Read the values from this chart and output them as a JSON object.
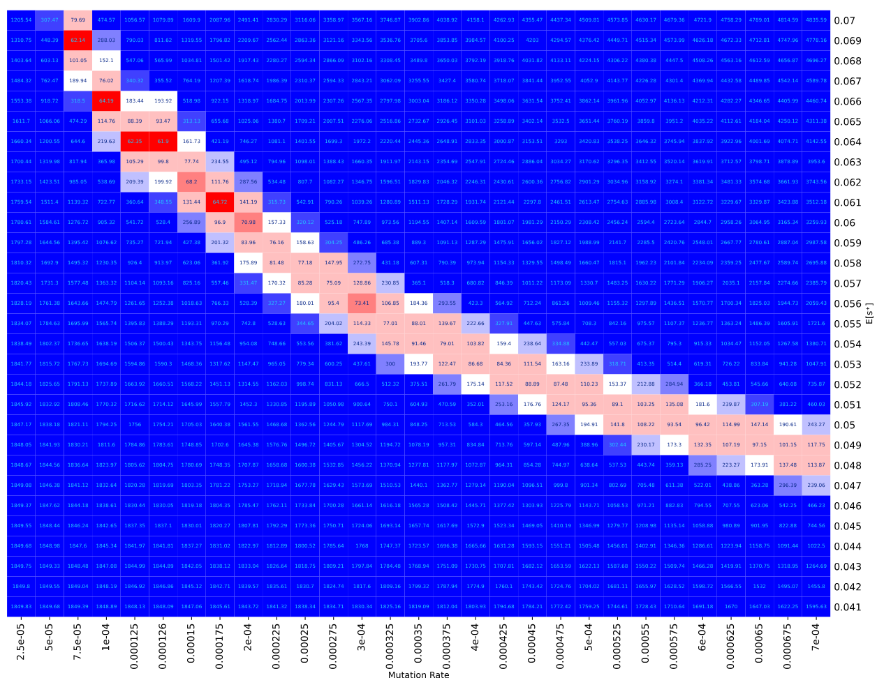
{
  "chart_data": {
    "type": "heatmap",
    "xlabel": "Mutation Rate",
    "ylabel": "E[s⁺]",
    "categories": [
      "2.5e-05",
      "5e-05",
      "7.5e-05",
      "1e-04",
      "0.000125",
      "0.000126",
      "0.00015",
      "0.000175",
      "2e-04",
      "0.000225",
      "0.00025",
      "0.000275",
      "3e-04",
      "0.000325",
      "0.00035",
      "0.000375",
      "4e-04",
      "0.000425",
      "0.00045",
      "0.000475",
      "5e-04",
      "0.000525",
      "0.00055",
      "0.000575",
      "6e-04",
      "0.000625",
      "0.00065",
      "0.000675",
      "7e-04"
    ],
    "y_categories": [
      "0.07",
      "0.069",
      "0.068",
      "0.067",
      "0.066",
      "0.065",
      "0.064",
      "0.063",
      "0.062",
      "0.061",
      "0.06",
      "0.059",
      "0.058",
      "0.057",
      "0.056",
      "0.055",
      "0.054",
      "0.053",
      "0.052",
      "0.051",
      "0.05",
      "0.049",
      "0.048",
      "0.047",
      "0.046",
      "0.045",
      "0.044",
      "0.043",
      "0.042",
      "0.041"
    ],
    "data_labels": true,
    "cells": [
      [
        1205.54,
        307.47,
        79.69,
        474.57,
        1056.57,
        1079.89,
        1609.9,
        2087.96,
        2491.41,
        2830.29,
        3116.06,
        3358.97,
        3567.16,
        3746.87,
        3902.86,
        4038.92,
        4158.1,
        4262.93,
        4355.47,
        4437.34,
        4509.81,
        4573.85,
        4630.17,
        4679.36,
        4721.9,
        4758.29,
        4789.01,
        4814.59,
        4835.59
      ],
      [
        1310.75,
        448.39,
        62.14,
        288.03,
        790.03,
        811.62,
        1319.55,
        1796.82,
        2209.67,
        2562.44,
        2863.36,
        3121.16,
        3343.56,
        3536.76,
        3705.6,
        3853.85,
        3984.57,
        4100.25,
        4203,
        4294.57,
        4376.42,
        4449.71,
        4515.34,
        4573.99,
        4626.18,
        4672.33,
        4712.81,
        4747.96,
        4778.16
      ],
      [
        1403.64,
        603.13,
        101.05,
        152.1,
        547.06,
        565.99,
        1034.81,
        1501.42,
        1917.43,
        2280.27,
        2594.34,
        2866.09,
        3102.16,
        3308.45,
        3489.8,
        3650.03,
        3792.19,
        3918.76,
        4031.82,
        4133.11,
        4224.15,
        4306.22,
        4380.38,
        4447.5,
        4508.26,
        4563.16,
        4612.59,
        4656.87,
        4696.27
      ],
      [
        1484.32,
        762.47,
        189.94,
        76.02,
        340.32,
        355.52,
        764.19,
        1207.39,
        1618.74,
        1986.39,
        2310.37,
        2594.33,
        2843.21,
        3062.09,
        3255.55,
        3427.4,
        3580.74,
        3718.07,
        3841.44,
        3952.55,
        4052.9,
        4143.77,
        4226.28,
        4301.4,
        4369.94,
        4432.58,
        4489.85,
        4542.14,
        4589.78
      ],
      [
        1553.38,
        918.72,
        318.5,
        64.19,
        183.44,
        193.92,
        518.98,
        922.15,
        1318.97,
        1684.75,
        2013.99,
        2307.26,
        2567.35,
        2797.98,
        3003.04,
        3186.12,
        3350.28,
        3498.06,
        3631.54,
        3752.41,
        3862.14,
        3961.96,
        4052.97,
        4136.13,
        4212.31,
        4282.27,
        4346.65,
        4405.99,
        4460.74
      ],
      [
        1611.7,
        1066.06,
        474.29,
        114.76,
        88.39,
        93.47,
        313.13,
        655.68,
        1025.06,
        1380.7,
        1709.21,
        2007.51,
        2276.06,
        2516.86,
        2732.67,
        2926.45,
        3101.03,
        3258.89,
        3402.14,
        3532.5,
        3651.44,
        3760.19,
        3859.8,
        3951.2,
        4035.22,
        4112.61,
        4184.04,
        4250.12,
        4311.38
      ],
      [
        1660.34,
        1200.55,
        644.6,
        219.63,
        62.35,
        61.9,
        161.73,
        421.19,
        746.27,
        1081.1,
        1401.55,
        1699.3,
        1972.2,
        2220.44,
        2445.36,
        2648.91,
        2833.35,
        3000.87,
        3153.51,
        3293,
        3420.83,
        3538.25,
        3646.32,
        3745.94,
        3837.92,
        3922.96,
        4001.69,
        4074.71,
        4142.55
      ],
      [
        1700.44,
        1319.98,
        817.94,
        365.98,
        105.29,
        99.8,
        77.74,
        234.55,
        495.12,
        794.96,
        1098.01,
        1388.43,
        1660.35,
        1911.97,
        2143.15,
        2354.69,
        2547.91,
        2724.46,
        2886.04,
        3034.27,
        3170.62,
        3296.35,
        3412.55,
        3520.14,
        3619.91,
        3712.57,
        3798.71,
        3878.89,
        3953.6
      ],
      [
        1733.15,
        1423.51,
        985.05,
        538.69,
        209.39,
        199.92,
        68.2,
        111.76,
        287.56,
        534.48,
        807.7,
        1082.27,
        1346.75,
        1596.51,
        1829.83,
        2046.32,
        2246.31,
        2430.61,
        2600.36,
        2756.82,
        2901.29,
        3034.96,
        3158.92,
        3274.1,
        3381.34,
        3481.33,
        3574.68,
        3661.93,
        3743.56
      ],
      [
        1759.54,
        1511.4,
        1139.32,
        722.77,
        360.64,
        348.55,
        131.44,
        64.72,
        141.19,
        315.73,
        542.91,
        790.26,
        1039.26,
        1280.89,
        1511.13,
        1728.29,
        1931.74,
        2121.44,
        2297.8,
        2461.51,
        2613.47,
        2754.63,
        2885.98,
        3008.4,
        3122.72,
        3229.67,
        3329.87,
        3423.88,
        3512.18
      ],
      [
        1780.61,
        1584.61,
        1276.72,
        905.32,
        541.72,
        528.4,
        256.89,
        96.9,
        70.98,
        157.33,
        320.12,
        525.18,
        747.89,
        973.56,
        1194.55,
        1407.14,
        1609.59,
        1801.07,
        1981.29,
        2150.29,
        2308.42,
        2456.24,
        2594.4,
        2723.64,
        2844.7,
        2958.26,
        3064.95,
        3165.34,
        3259.93
      ],
      [
        1797.28,
        1644.56,
        1395.42,
        1076.62,
        735.27,
        721.94,
        427.38,
        201.32,
        83.96,
        76.16,
        158.63,
        304.25,
        486.26,
        685.38,
        889.3,
        1091.13,
        1287.29,
        1475.91,
        1656.02,
        1827.12,
        1988.99,
        2141.7,
        2285.5,
        2420.76,
        2548.01,
        2667.77,
        2780.61,
        2887.04,
        2987.58
      ],
      [
        1810.32,
        1692.9,
        1495.32,
        1230.35,
        926.4,
        913.97,
        623.06,
        361.92,
        175.89,
        81.48,
        77.18,
        147.95,
        272.75,
        431.18,
        607.31,
        790.39,
        973.94,
        1154.33,
        1329.55,
        1498.49,
        1660.47,
        1815.1,
        1962.23,
        2101.84,
        2234.09,
        2359.25,
        2477.67,
        2589.74,
        2695.88
      ],
      [
        1820.43,
        1731.3,
        1577.48,
        1363.32,
        1104.14,
        1093.16,
        825.16,
        557.46,
        331.47,
        170.32,
        85.28,
        75.09,
        128.86,
        230.85,
        365.1,
        518.3,
        680.82,
        846.39,
        1011.22,
        1173.09,
        1330.7,
        1483.25,
        1630.22,
        1771.29,
        1906.27,
        2035.1,
        2157.84,
        2274.66,
        2385.79
      ],
      [
        1828.19,
        1761.38,
        1643.66,
        1474.79,
        1261.65,
        1252.38,
        1018.63,
        766.33,
        528.39,
        327.27,
        180.01,
        95.4,
        73.41,
        106.85,
        184.36,
        293.55,
        423.3,
        564.92,
        712.24,
        861.26,
        1009.46,
        1155.32,
        1297.89,
        1436.51,
        1570.77,
        1700.34,
        1825.03,
        1944.73,
        2059.43
      ],
      [
        1834.07,
        1784.63,
        1695.99,
        1565.74,
        1395.83,
        1388.29,
        1193.31,
        970.29,
        742.8,
        528.63,
        344.65,
        204.02,
        114.33,
        77.01,
        88.01,
        139.67,
        222.66,
        327.91,
        447.63,
        575.84,
        708.3,
        842.16,
        975.57,
        1107.37,
        1236.77,
        1363.24,
        1486.39,
        1605.91,
        1721.6
      ],
      [
        1838.49,
        1802.37,
        1736.65,
        1638.19,
        1506.37,
        1500.43,
        1343.75,
        1156.48,
        954.08,
        748.66,
        553.56,
        381.62,
        243.39,
        145.78,
        91.46,
        79.01,
        103.82,
        159.4,
        238.64,
        334.88,
        442.47,
        557.03,
        675.37,
        795.3,
        915.33,
        1034.47,
        1152.05,
        1267.58,
        1380.71
      ],
      [
        1841.77,
        1815.72,
        1767.73,
        1694.69,
        1594.86,
        1590.3,
        1468.36,
        1317.62,
        1147.47,
        965.05,
        779.34,
        600.25,
        437.61,
        300,
        193.77,
        122.47,
        86.68,
        84.36,
        111.54,
        163.16,
        233.89,
        318.71,
        413.35,
        514.4,
        619.31,
        726.22,
        833.84,
        941.28,
        1047.91
      ],
      [
        1844.18,
        1825.65,
        1791.13,
        1737.89,
        1663.92,
        1660.51,
        1568.22,
        1451.13,
        1314.55,
        1162.03,
        998.74,
        831.13,
        666.5,
        512.32,
        375.51,
        261.79,
        175.14,
        117.52,
        88.89,
        87.48,
        110.23,
        153.37,
        212.88,
        284.94,
        366.18,
        453.81,
        545.66,
        640.08,
        735.87
      ],
      [
        1845.92,
        1832.92,
        1808.46,
        1770.32,
        1716.62,
        1714.12,
        1645.99,
        1557.79,
        1452.3,
        1330.85,
        1195.89,
        1050.98,
        900.64,
        750.1,
        604.93,
        470.59,
        352.01,
        253.16,
        176.76,
        124.17,
        95.36,
        89.1,
        103.25,
        135.08,
        181.6,
        239.87,
        307.19,
        381.22,
        460.03
      ],
      [
        1847.17,
        1838.18,
        1821.11,
        1794.25,
        1756,
        1754.21,
        1705.03,
        1640.38,
        1561.55,
        1468.68,
        1362.56,
        1244.79,
        1117.69,
        984.31,
        848.25,
        713.53,
        584.3,
        464.56,
        357.93,
        267.35,
        194.91,
        141.8,
        108.22,
        93.54,
        96.42,
        114.99,
        147.14,
        190.61,
        243.27
      ],
      [
        1848.05,
        1841.93,
        1830.21,
        1811.6,
        1784.86,
        1783.61,
        1748.85,
        1702.6,
        1645.38,
        1576.76,
        1496.72,
        1405.67,
        1304.52,
        1194.72,
        1078.19,
        957.31,
        834.84,
        713.76,
        597.14,
        487.96,
        388.96,
        302.44,
        230.17,
        173.3,
        132.35,
        107.19,
        97.15,
        101.15,
        117.75
      ],
      [
        1848.67,
        1844.56,
        1836.64,
        1823.97,
        1805.62,
        1804.75,
        1780.69,
        1748.35,
        1707.87,
        1658.68,
        1600.38,
        1532.85,
        1456.22,
        1370.94,
        1277.81,
        1177.97,
        1072.87,
        964.31,
        854.28,
        744.97,
        638.64,
        537.53,
        443.74,
        359.13,
        285.25,
        223.27,
        173.91,
        137.48,
        113.87
      ],
      [
        1849.08,
        1846.38,
        1841.12,
        1832.64,
        1820.28,
        1819.69,
        1803.35,
        1781.22,
        1753.27,
        1718.94,
        1677.78,
        1629.43,
        1573.69,
        1510.53,
        1440.1,
        1362.77,
        1279.14,
        1190.04,
        1096.51,
        999.8,
        901.34,
        802.69,
        705.48,
        611.38,
        522.01,
        438.86,
        363.28,
        296.39,
        239.06
      ],
      [
        1849.37,
        1847.62,
        1844.18,
        1838.61,
        1830.44,
        1830.05,
        1819.18,
        1804.35,
        1785.47,
        1762.11,
        1733.84,
        1700.28,
        1661.14,
        1616.18,
        1565.28,
        1508.42,
        1445.71,
        1377.42,
        1303.93,
        1225.79,
        1143.71,
        1058.53,
        971.21,
        882.83,
        794.55,
        707.55,
        623.06,
        542.25,
        466.23
      ],
      [
        1849.55,
        1848.44,
        1846.24,
        1842.65,
        1837.35,
        1837.1,
        1830.01,
        1820.27,
        1807.81,
        1792.29,
        1773.36,
        1750.71,
        1724.06,
        1693.14,
        1657.74,
        1617.69,
        1572.9,
        1523.34,
        1469.05,
        1410.19,
        1346.99,
        1279.77,
        1208.98,
        1135.14,
        1058.88,
        980.89,
        901.95,
        822.88,
        744.56
      ],
      [
        1849.68,
        1848.98,
        1847.6,
        1845.34,
        1841.97,
        1841.81,
        1837.27,
        1831.02,
        1822.97,
        1812.89,
        1800.52,
        1785.64,
        1768,
        1747.37,
        1723.57,
        1696.38,
        1665.66,
        1631.28,
        1593.15,
        1551.21,
        1505.48,
        1456.01,
        1402.91,
        1346.36,
        1286.61,
        1223.94,
        1158.75,
        1091.44,
        1022.5
      ],
      [
        1849.75,
        1849.33,
        1848.48,
        1847.08,
        1844.99,
        1844.89,
        1842.05,
        1838.12,
        1833.04,
        1826.64,
        1818.75,
        1809.21,
        1797.84,
        1784.48,
        1768.94,
        1751.09,
        1730.75,
        1707.81,
        1682.12,
        1653.59,
        1622.13,
        1587.68,
        1550.22,
        1509.74,
        1466.28,
        1419.91,
        1370.75,
        1318.95,
        1264.69
      ],
      [
        1849.8,
        1849.55,
        1849.04,
        1848.19,
        1846.92,
        1846.86,
        1845.12,
        1842.71,
        1839.57,
        1835.61,
        1830.7,
        1824.74,
        1817.6,
        1809.16,
        1799.32,
        1787.94,
        1774.9,
        1760.1,
        1743.42,
        1724.76,
        1704.02,
        1681.11,
        1655.97,
        1628.52,
        1598.72,
        1566.55,
        1532,
        1495.07,
        1455.8
      ],
      [
        1849.83,
        1849.68,
        1849.39,
        1848.89,
        1848.13,
        1848.09,
        1847.06,
        1845.61,
        1843.72,
        1841.32,
        1838.34,
        1834.71,
        1830.34,
        1825.16,
        1819.09,
        1812.04,
        1803.93,
        1794.68,
        1784.21,
        1772.42,
        1759.25,
        1744.61,
        1728.43,
        1710.64,
        1691.18,
        1670,
        1647.03,
        1622.25,
        1595.63
      ]
    ]
  }
}
